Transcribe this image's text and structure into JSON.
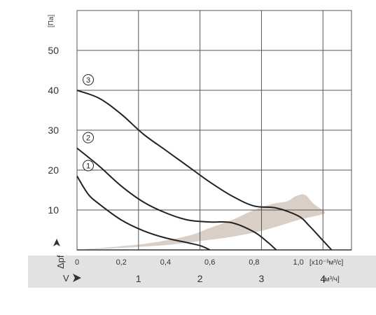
{
  "chart_data": {
    "type": "line",
    "y_unit": "[Па]",
    "y_symbol": "Δpf",
    "x_unit": "[x10⁻³м³/с]",
    "x2_unit": "[м³/ч]",
    "x_symbol": "V",
    "ylim": [
      0,
      60
    ],
    "y_ticks": [
      10,
      20,
      30,
      40,
      50
    ],
    "xlim": [
      0,
      1.24
    ],
    "x_ticks": [
      {
        "value": 0,
        "label": "0"
      },
      {
        "value": 0.2,
        "label": "0,2"
      },
      {
        "value": 0.4,
        "label": "0,4"
      },
      {
        "value": 0.6,
        "label": "0,6"
      },
      {
        "value": 0.8,
        "label": "0,8"
      },
      {
        "value": 1.0,
        "label": "1,0"
      }
    ],
    "x2_ticks": [
      {
        "value": 1,
        "label": "1"
      },
      {
        "value": 2,
        "label": "2"
      },
      {
        "value": 3,
        "label": "3"
      },
      {
        "value": 4,
        "label": "4"
      }
    ],
    "x2_factor": 3.6,
    "grid": true,
    "series": [
      {
        "name": "1",
        "x": [
          0,
          0.05,
          0.1,
          0.2,
          0.3,
          0.4,
          0.5,
          0.56,
          0.6
        ],
        "y": [
          18.5,
          14,
          11.5,
          7.5,
          4.8,
          3,
          1.8,
          1,
          0
        ]
      },
      {
        "name": "2",
        "x": [
          0,
          0.1,
          0.2,
          0.3,
          0.4,
          0.5,
          0.6,
          0.7,
          0.8,
          0.86,
          0.9
        ],
        "y": [
          25.5,
          21,
          16,
          12,
          9.3,
          7.5,
          7,
          6.8,
          4.5,
          2,
          0
        ]
      },
      {
        "name": "3",
        "x": [
          0,
          0.1,
          0.2,
          0.3,
          0.4,
          0.5,
          0.6,
          0.7,
          0.8,
          0.9,
          1.0,
          1.05,
          1.1,
          1.15
        ],
        "y": [
          40,
          38,
          34,
          29,
          25,
          21,
          17,
          13.5,
          11,
          10.5,
          8.5,
          6,
          3,
          0
        ]
      }
    ],
    "shaded_region": {
      "x": [
        0,
        0.3,
        0.5,
        0.6,
        0.7,
        0.8,
        0.88,
        0.95,
        0.99,
        1.03,
        1.07,
        1.12,
        1.1,
        1.0,
        0.85,
        0.7,
        0.55,
        0.4,
        0.2,
        0
      ],
      "y": [
        0,
        1.5,
        3.5,
        5.5,
        7.5,
        10,
        11.5,
        12.2,
        13.5,
        13.8,
        11.5,
        9.5,
        8.8,
        7.5,
        5,
        3.3,
        2.2,
        1.2,
        0.5,
        0
      ],
      "color": "#d9cfc7"
    },
    "colors": {
      "line": "#222222",
      "grid": "#555555",
      "band": "#e2e2e2"
    }
  }
}
